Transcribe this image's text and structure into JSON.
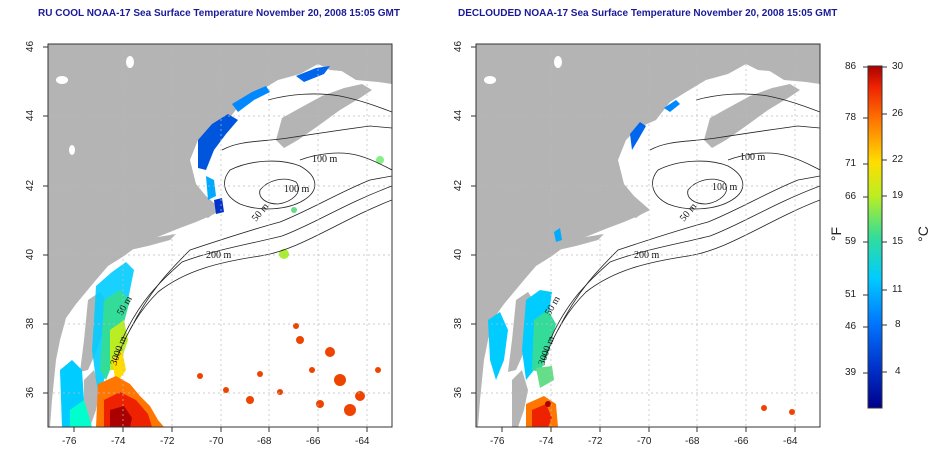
{
  "maps": [
    {
      "title": "RU COOL NOAA-17 Sea Surface Temperature November 20, 2008 15:05 GMT",
      "x_ticks": [
        "-76",
        "-74",
        "-72",
        "-70",
        "-68",
        "-66",
        "-64"
      ],
      "y_ticks": [
        "46",
        "44",
        "42",
        "40",
        "38",
        "36"
      ],
      "contour_labels": [
        "100 m",
        "100 m",
        "50 m",
        "200 m",
        "50 m",
        "3000 m"
      ]
    },
    {
      "title": "DECLOUDED NOAA-17 Sea Surface Temperature November 20, 2008 15:05 GMT",
      "x_ticks": [
        "-76",
        "-74",
        "-72",
        "-70",
        "-68",
        "-66",
        "-64"
      ],
      "y_ticks": [
        "46",
        "44",
        "42",
        "40",
        "38",
        "36"
      ],
      "contour_labels": [
        "100 m",
        "100 m",
        "50 m",
        "200 m",
        "50 m",
        "3000 m"
      ]
    }
  ],
  "colorbar": {
    "fahrenheit_ticks": [
      "86",
      "78",
      "71",
      "66",
      "59",
      "51",
      "46",
      "39"
    ],
    "celsius_ticks": [
      "30",
      "26",
      "22",
      "19",
      "15",
      "11",
      "8",
      "4"
    ],
    "fahrenheit_unit": "°F",
    "celsius_unit": "°C"
  },
  "colors": {
    "land": "#b4b4b4",
    "ocean_missing": "#ffffff",
    "title": "#1a1a99",
    "scale": [
      "#0000aa",
      "#0055ff",
      "#00bbff",
      "#33ddaa",
      "#aaee33",
      "#ffee00",
      "#ff9900",
      "#ff3300",
      "#aa0000"
    ]
  }
}
